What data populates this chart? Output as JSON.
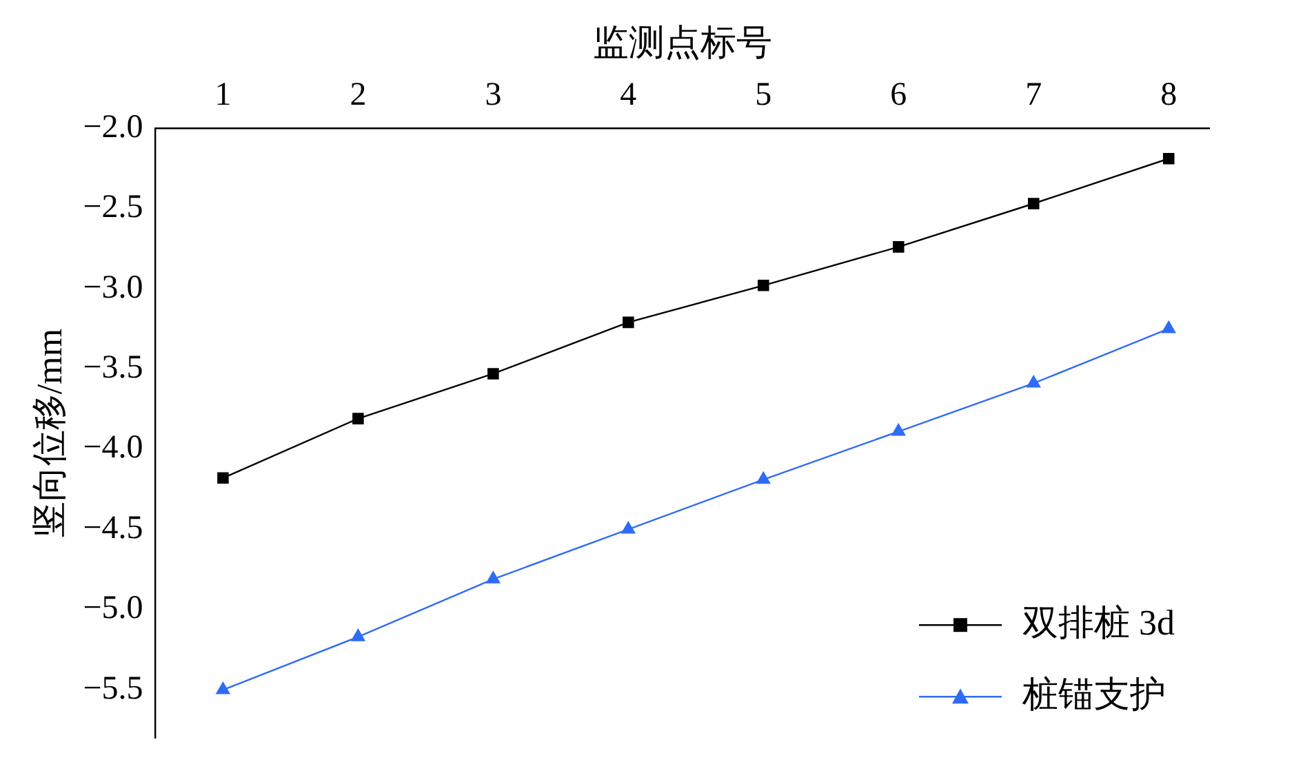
{
  "chart_data": {
    "type": "line",
    "xlabel": "监测点标号",
    "ylabel": "竖向位移/mm",
    "x": [
      1,
      2,
      3,
      4,
      5,
      6,
      7,
      8
    ],
    "series": [
      {
        "name": "双排桩 3d",
        "color": "#000000",
        "marker": "square",
        "values": [
          -4.18,
          -3.81,
          -3.53,
          -3.21,
          -2.98,
          -2.74,
          -2.47,
          -2.19
        ]
      },
      {
        "name": "桩锚支护",
        "color": "#2f6cf5",
        "marker": "triangle",
        "values": [
          -5.5,
          -5.17,
          -4.81,
          -4.5,
          -4.19,
          -3.89,
          -3.59,
          -3.25
        ]
      }
    ],
    "xlim": [
      0.5,
      8.3
    ],
    "xticks": [
      1,
      2,
      3,
      4,
      5,
      6,
      7,
      8
    ],
    "ylim": [
      -5.8,
      -2.0
    ],
    "yticks": [
      {
        "value": -5.5,
        "label": "−5.5"
      },
      {
        "value": -5,
        "label": "−5.0"
      },
      {
        "value": -4.5,
        "label": "−4.5"
      },
      {
        "value": -4,
        "label": "−4.0"
      },
      {
        "value": -3.5,
        "label": "−3.5"
      },
      {
        "value": -3,
        "label": "−3.0"
      },
      {
        "value": -2.5,
        "label": "−2.5"
      },
      {
        "value": -2,
        "label": "−2.0"
      }
    ],
    "grid": false,
    "legend": "bottom right",
    "line_style": "solid"
  }
}
